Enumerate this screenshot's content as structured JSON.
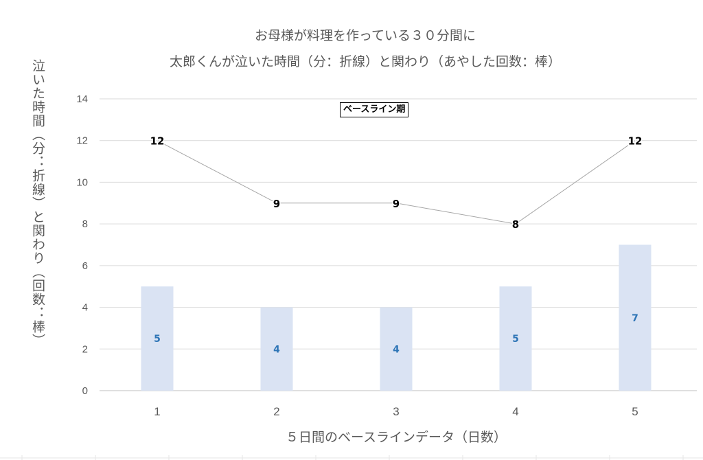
{
  "chart_data": {
    "type": "bar+line",
    "title_line1": "お母様が料理を作っている３０分間に",
    "title_line2": "太郎くんが泣いた時間（分：折線）と関わり（あやした回数：棒）",
    "ylabel": "泣いた時間（分：折線）と関わり（回数：棒）",
    "xlabel": "５日間のベースラインデータ（日数）",
    "phase_label": "ベースライン期",
    "categories": [
      "1",
      "2",
      "3",
      "4",
      "5"
    ],
    "ylim": [
      0,
      14
    ],
    "yticks": [
      0,
      2,
      4,
      6,
      8,
      10,
      12,
      14
    ],
    "grid": true,
    "bar_series": {
      "values": [
        5,
        4,
        4,
        5,
        7
      ],
      "color": "#dae3f3",
      "label_color": "#2e75b6"
    },
    "line_series": {
      "values": [
        12,
        9,
        9,
        8,
        12
      ],
      "color": "#a6a6a6",
      "label_color": "#000000"
    }
  }
}
